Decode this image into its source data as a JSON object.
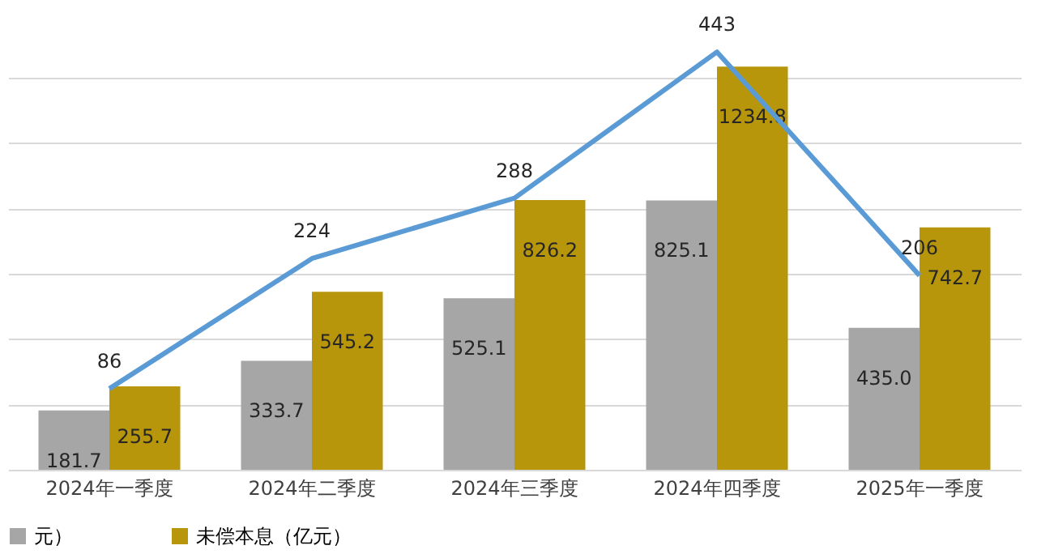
{
  "chart_data": {
    "type": "bar",
    "categories": [
      "2024年一季度",
      "2024年二季度",
      "2024年三季度",
      "2024年四季度",
      "2025年一季度"
    ],
    "series": [
      {
        "name": "元）",
        "color": "#a6a6a6",
        "values": [
          181.7,
          333.7,
          525.1,
          825.1,
          435.0
        ],
        "value_labels": [
          "181.7",
          "333.7",
          "525.1",
          "825.1",
          "435.0"
        ]
      },
      {
        "name": "未偿本息（亿元）",
        "color": "#b8960c",
        "values": [
          255.7,
          545.2,
          826.2,
          1234.8,
          742.7
        ],
        "value_labels": [
          "255.7",
          "545.2",
          "826.2",
          "1234.8",
          "742.7"
        ]
      },
      {
        "type": "line",
        "axis": "y2",
        "color": "#5b9bd5",
        "values": [
          86,
          224,
          288,
          443,
          206
        ]
      }
    ],
    "grid": "y",
    "tick_labels": "x",
    "legend": "bottom",
    "data_labels": true
  }
}
